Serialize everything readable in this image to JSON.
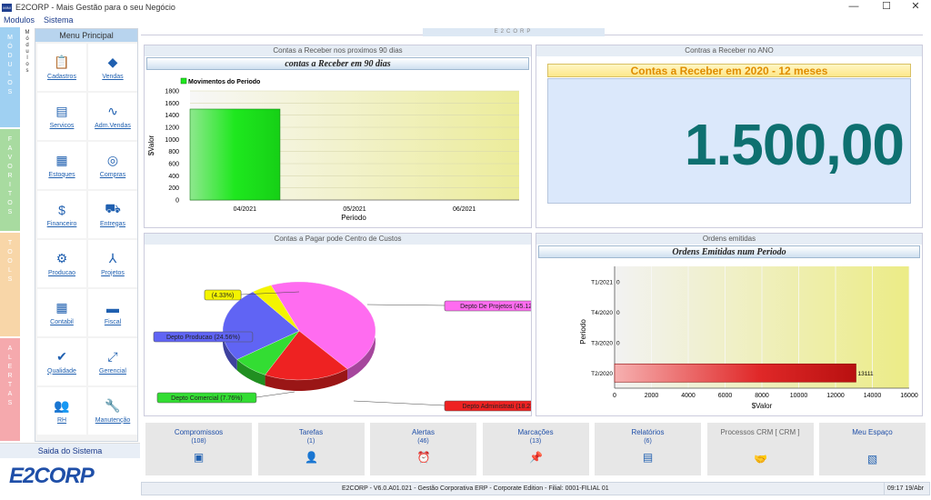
{
  "window": {
    "title": "E2CORP - Mais Gestão para o seu Negócio",
    "icon_label": "MINI",
    "controls": [
      "—",
      "☐",
      "✕"
    ]
  },
  "menubar": {
    "items": [
      "Modulos",
      "Sistema"
    ]
  },
  "side_tabs": [
    {
      "label": "MÓDULOS",
      "color": "#9fd0f2"
    },
    {
      "label": "FAVORITOS",
      "color": "#a8dba0"
    },
    {
      "label": "TOOLS",
      "color": "#f8d6a8"
    },
    {
      "label": "ALERTAS",
      "color": "#f5a9ad"
    }
  ],
  "modules_subtab": "Módulos",
  "menu_principal": {
    "title": "Menu Principal",
    "items": [
      {
        "label": "Cadastros",
        "icon": "clipboard-icon"
      },
      {
        "label": "Vendas",
        "icon": "sales-icon"
      },
      {
        "label": "Servicos",
        "icon": "id-card-icon"
      },
      {
        "label": "Adm.Vendas",
        "icon": "trend-icon"
      },
      {
        "label": "Estoques",
        "icon": "boxes-icon"
      },
      {
        "label": "Compras",
        "icon": "coins-icon"
      },
      {
        "label": "Financeiro",
        "icon": "dollar-icon"
      },
      {
        "label": "Entregas",
        "icon": "cart-icon"
      },
      {
        "label": "Producao",
        "icon": "gears-icon"
      },
      {
        "label": "Projetos",
        "icon": "compass-icon"
      },
      {
        "label": "Contabil",
        "icon": "calculator-icon"
      },
      {
        "label": "Fiscal",
        "icon": "printer-icon"
      },
      {
        "label": "Qualidade",
        "icon": "check-icon"
      },
      {
        "label": "Gerencial",
        "icon": "expand-icon"
      },
      {
        "label": "RH",
        "icon": "people-icon"
      },
      {
        "label": "Manutenção",
        "icon": "wrench-icon"
      }
    ]
  },
  "saida": "Saida do Sistema",
  "logo": "E2CORP",
  "top_strip": "E2CORP",
  "panel_receber_90": {
    "header": "Contas a Receber nos proximos 90 dias",
    "chart_title": "contas a Receber em 90 dias",
    "legend": "Movimentos do Periodo",
    "ylabel": "$Valor",
    "xlabel": "Periodo",
    "yticks": [
      "1800",
      "1600",
      "1400",
      "1200",
      "1000",
      "800",
      "600",
      "400",
      "200",
      "0"
    ]
  },
  "panel_receber_ano": {
    "header": "Contras a Receber no ANO",
    "banner": "Contas a Receber em 2020 - 12 meses",
    "value": "1.500,00"
  },
  "panel_pagar": {
    "header": "Contas a Pagar pode Centro de Custos"
  },
  "panel_ordens": {
    "header": "Ordens emitidas",
    "chart_title": "Ordens Emitidas num Periodo",
    "ylabel": "Periodo",
    "xlabel": "$Valor",
    "bar_label": "13111"
  },
  "chart_data": [
    {
      "type": "bar",
      "title": "contas a Receber em 90 dias",
      "xlabel": "Periodo",
      "ylabel": "$Valor",
      "ylim": [
        0,
        1800
      ],
      "categories": [
        "04/2021",
        "05/2021",
        "06/2021"
      ],
      "series": [
        {
          "name": "Movimentos do Periodo",
          "values": [
            1500,
            0,
            0
          ]
        }
      ],
      "legend": "top-left",
      "colors": [
        "#1ee81e"
      ]
    },
    {
      "type": "pie",
      "labels": [
        "Depto De Projetos (45.12%)",
        "Depto Administrati (18.23%)",
        "Depto Comercial (7.76%)",
        "Depto Producao (24.56%)",
        "(4.33%)"
      ],
      "values": [
        45.12,
        18.23,
        7.76,
        24.56,
        4.33
      ],
      "colors": [
        "#ff6cf0",
        "#ee2222",
        "#33dd33",
        "#6064f4",
        "#f4f400"
      ]
    },
    {
      "type": "bar",
      "orientation": "horizontal",
      "title": "Ordens Emitidas num Periodo",
      "xlabel": "$Valor",
      "ylabel": "Periodo",
      "xlim": [
        0,
        16000
      ],
      "xticks": [
        0,
        2000,
        4000,
        6000,
        8000,
        10000,
        12000,
        14000,
        16000
      ],
      "categories": [
        "T1/2021",
        "T4/2020",
        "T3/2020",
        "T2/2020"
      ],
      "values": [
        0,
        0,
        0,
        13111
      ],
      "value_labels": [
        "0",
        "0",
        "0",
        "13111"
      ],
      "colors": [
        "#e02020"
      ]
    }
  ],
  "bottom_tiles": [
    {
      "title": "Compromissos",
      "count": "(108)",
      "icon": "calendar-icon",
      "color": "#1f4fa8"
    },
    {
      "title": "Tarefas",
      "count": "(1)",
      "icon": "user-task-icon",
      "color": "#1f4fa8"
    },
    {
      "title": "Alertas",
      "count": "(46)",
      "icon": "alarm-icon",
      "color": "#1f4fa8"
    },
    {
      "title": "Marcações",
      "count": "(13)",
      "icon": "pin-icon",
      "color": "#1f4fa8"
    },
    {
      "title": "Relatórios",
      "count": "(6)",
      "icon": "report-icon",
      "color": "#1f4fa8"
    },
    {
      "title": "Processos CRM [ CRM ]",
      "count": "",
      "icon": "handshake-icon",
      "color": "#666666"
    },
    {
      "title": "Meu Espaço",
      "count": "",
      "icon": "workspace-icon",
      "color": "#1f4fa8"
    }
  ],
  "statusbar": {
    "text": "E2CORP - V6.0.A01.021 - Gestão Corporativa ERP - Corporate Edition  -  Filial: 0001-FILIAL 01",
    "time": "09:17  19/Abr"
  }
}
